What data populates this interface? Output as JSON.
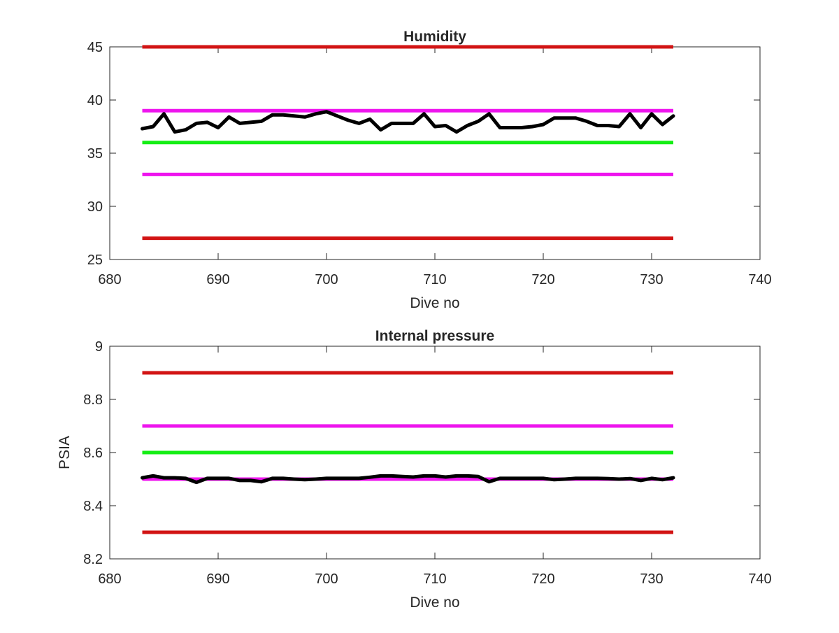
{
  "chart_data": [
    {
      "type": "line",
      "title": "Humidity",
      "xlabel": "Dive no",
      "ylabel": "",
      "xlim": [
        680,
        740
      ],
      "ylim": [
        25,
        45
      ],
      "xticks": [
        680,
        690,
        700,
        710,
        720,
        730,
        740
      ],
      "yticks": [
        25,
        30,
        35,
        40,
        45
      ],
      "xtick_labels": [
        "680",
        "690",
        "700",
        "710",
        "720",
        "730",
        "740"
      ],
      "ytick_labels": [
        "25",
        "30",
        "35",
        "40",
        "45"
      ],
      "grid": false,
      "limit_lines": [
        {
          "y": 45,
          "x": [
            683,
            732
          ],
          "color": "#d21414"
        },
        {
          "y": 39,
          "x": [
            683,
            732
          ],
          "color": "#ee14ee"
        },
        {
          "y": 36,
          "x": [
            683,
            732
          ],
          "color": "#14ee14"
        },
        {
          "y": 33,
          "x": [
            683,
            732
          ],
          "color": "#ee14ee"
        },
        {
          "y": 27,
          "x": [
            683,
            732
          ],
          "color": "#d21414"
        }
      ],
      "series": [
        {
          "color": "#000000",
          "x": [
            683,
            684,
            685,
            686,
            687,
            688,
            689,
            690,
            691,
            692,
            693,
            694,
            695,
            696,
            697,
            698,
            699,
            700,
            701,
            702,
            703,
            704,
            705,
            706,
            707,
            708,
            709,
            710,
            711,
            712,
            713,
            714,
            715,
            716,
            717,
            718,
            719,
            720,
            721,
            722,
            723,
            724,
            725,
            726,
            727,
            728,
            729,
            730,
            731,
            732
          ],
          "y": [
            37.3,
            37.5,
            38.7,
            37.0,
            37.2,
            37.8,
            37.9,
            37.4,
            38.4,
            37.8,
            37.9,
            38.0,
            38.6,
            38.6,
            38.5,
            38.4,
            38.7,
            38.9,
            38.5,
            38.1,
            37.8,
            38.2,
            37.2,
            37.8,
            37.8,
            37.8,
            38.7,
            37.5,
            37.6,
            37.0,
            37.6,
            38.0,
            38.7,
            37.4,
            37.4,
            37.4,
            37.5,
            37.7,
            38.3,
            38.3,
            38.3,
            38.0,
            37.6,
            37.6,
            37.5,
            38.7,
            37.4,
            38.7,
            37.7,
            38.5
          ]
        }
      ]
    },
    {
      "type": "line",
      "title": "Internal pressure",
      "xlabel": "Dive no",
      "ylabel": "PSIA",
      "xlim": [
        680,
        740
      ],
      "ylim": [
        8.2,
        9
      ],
      "xticks": [
        680,
        690,
        700,
        710,
        720,
        730,
        740
      ],
      "yticks": [
        8.2,
        8.4,
        8.6,
        8.8,
        9
      ],
      "xtick_labels": [
        "680",
        "690",
        "700",
        "710",
        "720",
        "730",
        "740"
      ],
      "ytick_labels": [
        "8.2",
        "8.4",
        "8.6",
        "8.8",
        "9"
      ],
      "grid": false,
      "limit_lines": [
        {
          "y": 8.9,
          "x": [
            683,
            732
          ],
          "color": "#d21414"
        },
        {
          "y": 8.7,
          "x": [
            683,
            732
          ],
          "color": "#ee14ee"
        },
        {
          "y": 8.6,
          "x": [
            683,
            732
          ],
          "color": "#14ee14"
        },
        {
          "y": 8.5,
          "x": [
            683,
            732
          ],
          "color": "#ee14ee"
        },
        {
          "y": 8.3,
          "x": [
            683,
            732
          ],
          "color": "#d21414"
        }
      ],
      "series": [
        {
          "color": "#000000",
          "x": [
            683,
            684,
            685,
            686,
            687,
            688,
            689,
            690,
            691,
            692,
            693,
            694,
            695,
            696,
            697,
            698,
            699,
            700,
            701,
            702,
            703,
            704,
            705,
            706,
            707,
            708,
            709,
            710,
            711,
            712,
            713,
            714,
            715,
            716,
            717,
            718,
            719,
            720,
            721,
            722,
            723,
            724,
            725,
            726,
            727,
            728,
            729,
            730,
            731,
            732
          ],
          "y": [
            8.505,
            8.512,
            8.505,
            8.505,
            8.503,
            8.488,
            8.503,
            8.503,
            8.503,
            8.495,
            8.495,
            8.49,
            8.503,
            8.503,
            8.5,
            8.498,
            8.5,
            8.503,
            8.503,
            8.503,
            8.503,
            8.507,
            8.512,
            8.512,
            8.51,
            8.508,
            8.512,
            8.512,
            8.508,
            8.512,
            8.512,
            8.51,
            8.49,
            8.503,
            8.503,
            8.503,
            8.503,
            8.503,
            8.498,
            8.5,
            8.503,
            8.503,
            8.503,
            8.502,
            8.5,
            8.502,
            8.495,
            8.503,
            8.498,
            8.505
          ]
        }
      ]
    }
  ]
}
